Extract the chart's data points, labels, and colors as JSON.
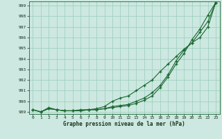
{
  "xlabel": "Graphe pression niveau de la mer (hPa)",
  "background_color": "#cce8e0",
  "grid_color": "#99ccbb",
  "line_color": "#1a6630",
  "x_ticks": [
    0,
    1,
    2,
    3,
    4,
    5,
    6,
    7,
    8,
    9,
    10,
    11,
    12,
    13,
    14,
    15,
    16,
    17,
    18,
    19,
    20,
    21,
    22,
    23
  ],
  "ylim": [
    988.8,
    999.4
  ],
  "yticks": [
    989,
    990,
    991,
    992,
    993,
    994,
    995,
    996,
    997,
    998,
    999
  ],
  "line1": [
    989.2,
    989.0,
    989.3,
    989.2,
    989.1,
    989.1,
    989.1,
    989.2,
    989.2,
    989.3,
    989.4,
    989.5,
    989.6,
    989.8,
    990.1,
    990.5,
    991.3,
    992.3,
    993.5,
    994.5,
    995.8,
    996.8,
    998.1,
    999.3
  ],
  "line2": [
    989.2,
    989.0,
    989.3,
    989.2,
    989.1,
    989.1,
    989.1,
    989.2,
    989.2,
    989.3,
    989.5,
    989.6,
    989.7,
    990.0,
    990.3,
    990.8,
    991.5,
    992.5,
    993.8,
    994.8,
    995.5,
    996.0,
    997.0,
    999.3
  ],
  "line3": [
    989.2,
    989.0,
    989.4,
    989.2,
    989.1,
    989.1,
    989.2,
    989.2,
    989.3,
    989.5,
    990.0,
    990.3,
    990.5,
    991.0,
    991.5,
    992.0,
    992.8,
    993.5,
    994.2,
    994.9,
    995.5,
    996.5,
    997.5,
    999.3
  ]
}
